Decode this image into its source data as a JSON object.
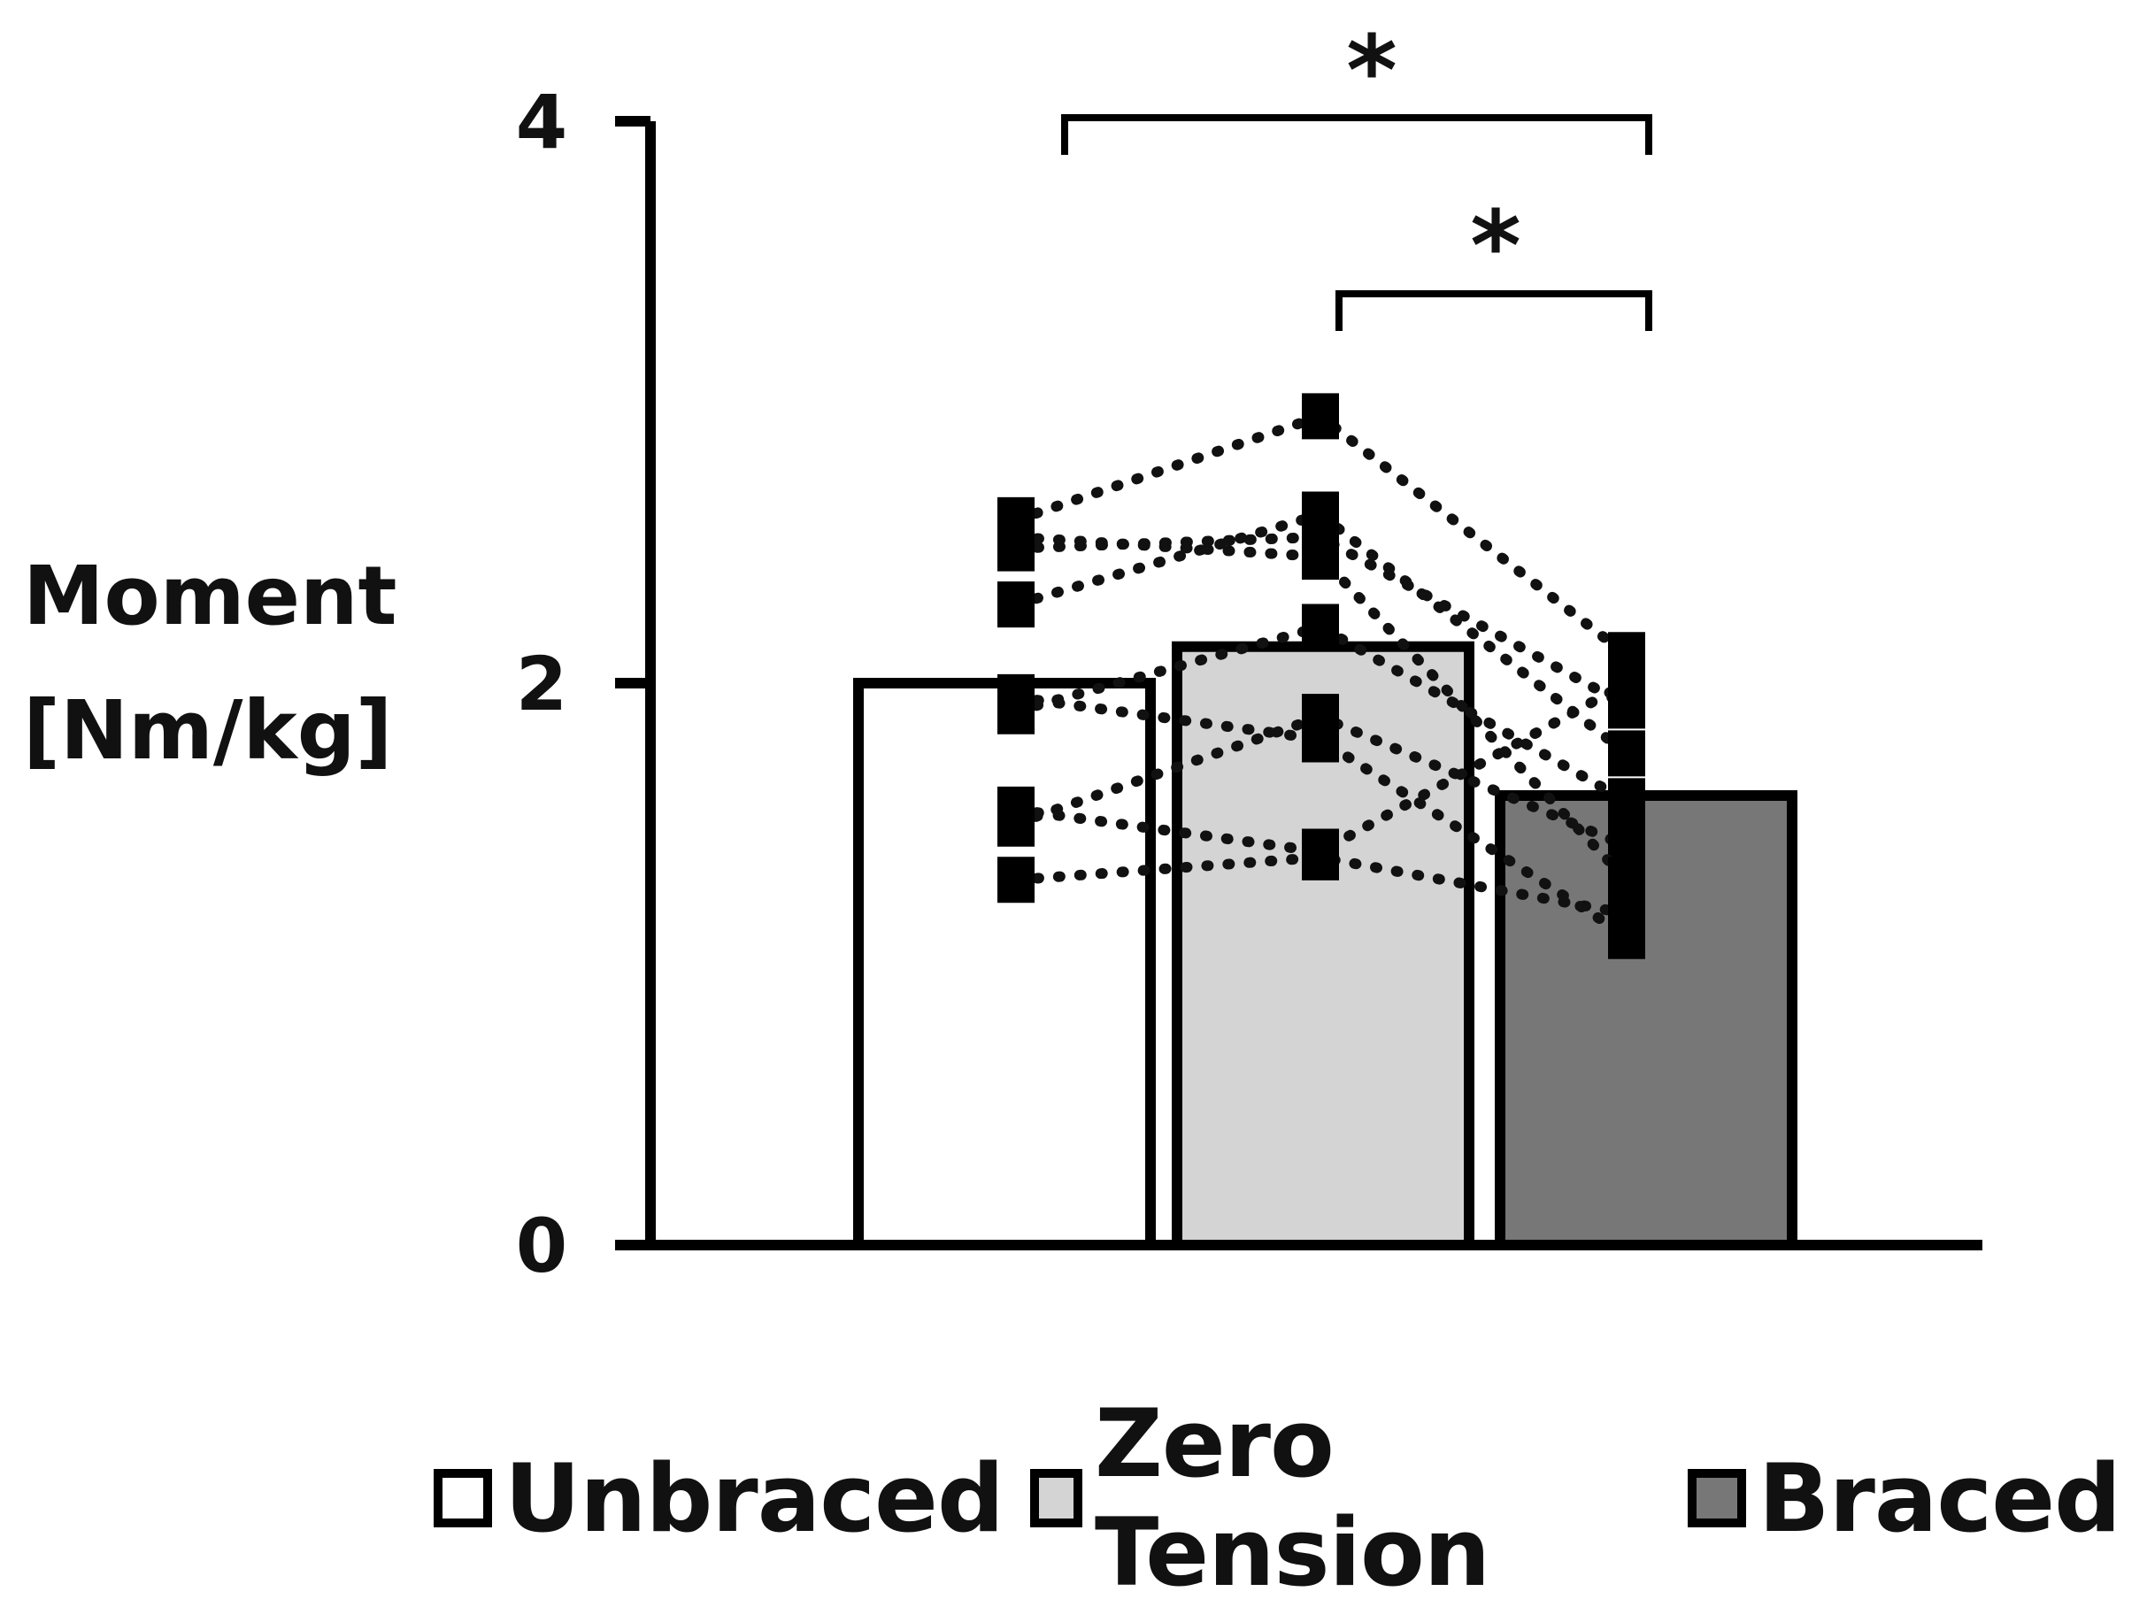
{
  "chart_data": {
    "type": "bar",
    "ylabel_line1": "Moment",
    "ylabel_line2": "[Nm/kg]",
    "ylim": [
      0,
      4
    ],
    "yticks": [
      "0",
      "2",
      "4"
    ],
    "legend_position": "bottom",
    "series": [
      {
        "name": "Unbraced",
        "value": 2.0,
        "color": "#ffffff"
      },
      {
        "name": "Zero Tension",
        "value": 2.13,
        "color": "#d4d4d4"
      },
      {
        "name": "Braced",
        "value": 1.6,
        "color": "#777777"
      }
    ],
    "individuals": [
      [
        2.58,
        2.95,
        2.1
      ],
      [
        2.48,
        2.52,
        1.92
      ],
      [
        2.28,
        2.6,
        1.75
      ],
      [
        1.9,
        2.2,
        1.58
      ],
      [
        1.5,
        1.88,
        1.42
      ],
      [
        1.3,
        1.38,
        1.18
      ],
      [
        2.52,
        2.45,
        1.3
      ],
      [
        1.95,
        1.8,
        1.1
      ],
      [
        1.55,
        1.4,
        2.0
      ]
    ],
    "annotations": [
      {
        "label": "*",
        "from": "Unbraced",
        "to": "Braced"
      },
      {
        "label": "*",
        "from": "Zero Tension",
        "to": "Braced"
      }
    ]
  }
}
